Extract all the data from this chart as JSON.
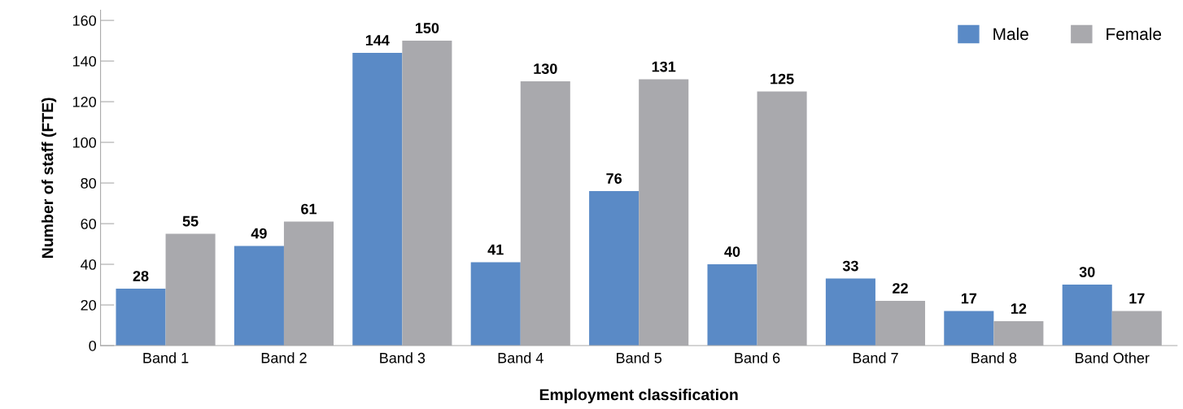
{
  "chart_data": {
    "type": "bar",
    "xlabel": "Employment classification",
    "ylabel": "Number of staff (FTE)",
    "categories": [
      "Band 1",
      "Band 2",
      "Band 3",
      "Band 4",
      "Band 5",
      "Band 6",
      "Band 7",
      "Band 8",
      "Band Other"
    ],
    "series": [
      {
        "name": "Male",
        "color": "#5a8ac6",
        "values": [
          28,
          49,
          144,
          41,
          76,
          40,
          33,
          17,
          30
        ]
      },
      {
        "name": "Female",
        "color": "#a9a9ad",
        "values": [
          55,
          61,
          150,
          130,
          131,
          125,
          22,
          12,
          17
        ]
      }
    ],
    "ylim": [
      0,
      165
    ],
    "yticks": [
      0,
      20,
      40,
      60,
      80,
      100,
      120,
      140,
      160
    ],
    "data_labels": true,
    "legend": "top right",
    "grid": false
  }
}
